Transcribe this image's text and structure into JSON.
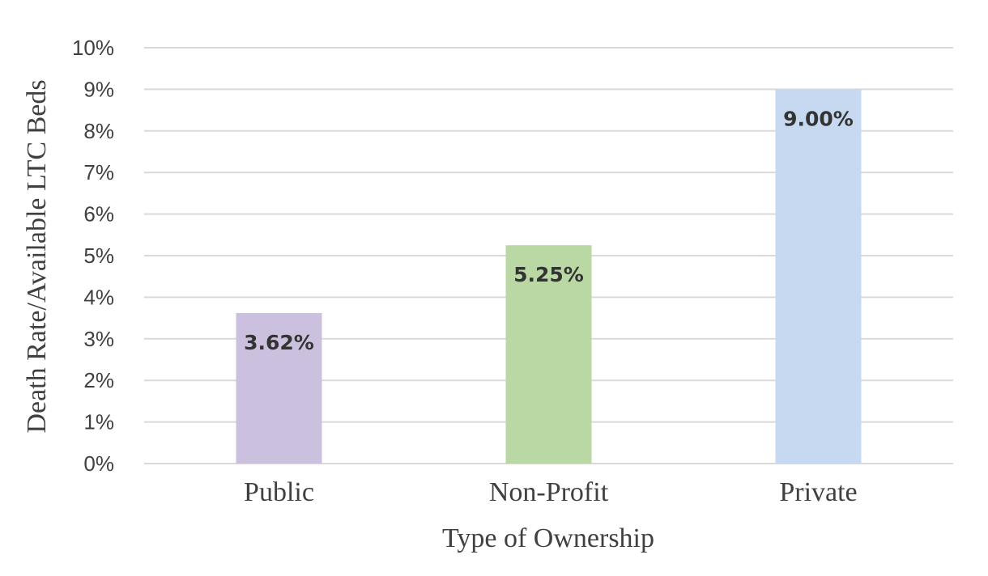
{
  "chart_data": {
    "type": "bar",
    "categories": [
      "Public",
      "Non-Profit",
      "Private"
    ],
    "values": [
      3.62,
      5.25,
      9.0
    ],
    "data_labels": [
      "3.62%",
      "5.25%",
      "9.00%"
    ],
    "bar_colors": [
      "#cbc0dd",
      "#b9d8a4",
      "#c6d9f1"
    ],
    "xlabel": "Type of Ownership",
    "ylabel": "Death Rate/Available LTC Beds",
    "ylim": [
      0,
      10
    ],
    "y_ticks": [
      0,
      1,
      2,
      3,
      4,
      5,
      6,
      7,
      8,
      9,
      10
    ],
    "y_tick_labels": [
      "0%",
      "1%",
      "2%",
      "3%",
      "4%",
      "5%",
      "6%",
      "7%",
      "8%",
      "9%",
      "10%"
    ],
    "grid": true,
    "legend": "none"
  }
}
